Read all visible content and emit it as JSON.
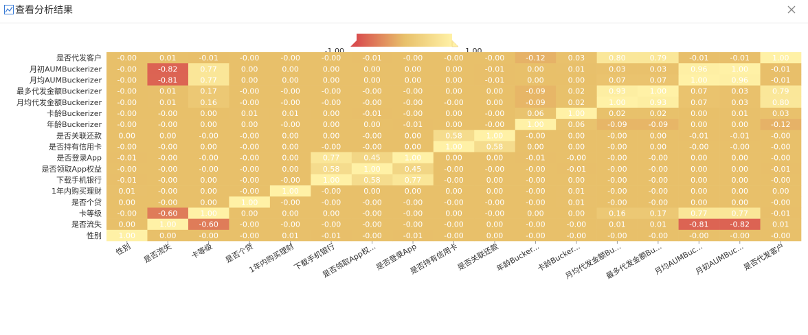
{
  "dialog": {
    "title": "查看分析结果"
  },
  "colors": {
    "low": "#d94e4e",
    "mid": "#e8c06a",
    "high": "#fff1a6",
    "grid": "#e8c06a"
  },
  "chart_data": {
    "type": "heatmap",
    "title": "",
    "visual_map": {
      "min": -1.0,
      "max": 1.0,
      "min_label": "-1.00",
      "max_label": "1.00"
    },
    "x_labels": [
      "性别",
      "是否流失",
      "卡等级",
      "是否个贷",
      "1年内购买理财",
      "下载手机银行",
      "是否领取App权...",
      "是否登录App",
      "是否持有信用卡",
      "是否关联还款",
      "年龄Bucker...",
      "卡龄Bucker...",
      "月均代发金额Bu...",
      "最多代发金额Bu...",
      "月均AUMBuc...",
      "月初AUMBuc...",
      "是否代发客户"
    ],
    "y_labels": [
      "是否代发客户",
      "月初AUMBuckerizer",
      "月均AUMBuckerizer",
      "最多代发金额Buckerizer",
      "月均代发金额Buckerizer",
      "卡龄Buckerizer",
      "年龄Buckerizer",
      "是否关联还款",
      "是否持有信用卡",
      "是否登录App",
      "是否领取App权益",
      "下载手机银行",
      "1年内购买理财",
      "是否个贷",
      "卡等级",
      "是否流失",
      "性别"
    ],
    "matrix": [
      [
        "-0.00",
        "0.01",
        "-0.01",
        "-0.00",
        "-0.00",
        "-0.00",
        "-0.01",
        "-0.00",
        "-0.00",
        "-0.00",
        "-0.12",
        "0.03",
        "0.80",
        "0.79",
        "-0.01",
        "-0.01",
        "1.00"
      ],
      [
        "-0.00",
        "-0.82",
        "0.77",
        "0.00",
        "0.00",
        "0.00",
        "0.00",
        "0.00",
        "0.00",
        "-0.01",
        "0.00",
        "0.01",
        "0.03",
        "0.03",
        "0.96",
        "1.00",
        "-0.01"
      ],
      [
        "-0.00",
        "-0.81",
        "0.77",
        "0.00",
        "0.00",
        "0.00",
        "0.00",
        "0.00",
        "0.00",
        "-0.01",
        "0.00",
        "0.00",
        "0.07",
        "0.07",
        "1.00",
        "0.96",
        "-0.01"
      ],
      [
        "-0.00",
        "0.01",
        "0.17",
        "-0.00",
        "-0.00",
        "-0.00",
        "-0.00",
        "-0.00",
        "0.00",
        "0.00",
        "-0.09",
        "0.02",
        "0.93",
        "1.00",
        "0.07",
        "0.03",
        "0.79"
      ],
      [
        "-0.00",
        "0.01",
        "0.16",
        "-0.00",
        "-0.00",
        "-0.00",
        "-0.00",
        "-0.00",
        "-0.00",
        "0.00",
        "-0.09",
        "0.02",
        "1.00",
        "0.93",
        "0.07",
        "0.03",
        "0.80"
      ],
      [
        "-0.00",
        "-0.00",
        "0.00",
        "0.01",
        "0.01",
        "0.00",
        "-0.01",
        "-0.00",
        "0.00",
        "-0.00",
        "0.06",
        "1.00",
        "0.02",
        "0.02",
        "0.00",
        "0.01",
        "0.03"
      ],
      [
        "-0.00",
        "-0.00",
        "0.00",
        "0.00",
        "-0.00",
        "0.00",
        "0.00",
        "-0.01",
        "0.00",
        "-0.00",
        "1.00",
        "0.06",
        "-0.09",
        "-0.09",
        "0.00",
        "0.00",
        "-0.12"
      ],
      [
        "0.00",
        "0.00",
        "-0.00",
        "-0.00",
        "0.00",
        "0.00",
        "-0.00",
        "0.00",
        "0.58",
        "1.00",
        "-0.00",
        "0.00",
        "-0.00",
        "0.00",
        "-0.01",
        "-0.01",
        "-0.00"
      ],
      [
        "-0.00",
        "-0.00",
        "0.00",
        "-0.00",
        "0.00",
        "-0.00",
        "-0.00",
        "0.00",
        "1.00",
        "0.58",
        "0.00",
        "0.00",
        "-0.00",
        "0.00",
        "-0.00",
        "-0.00",
        "-0.00"
      ],
      [
        "-0.01",
        "-0.00",
        "-0.00",
        "-0.00",
        "0.00",
        "0.77",
        "0.45",
        "1.00",
        "0.00",
        "0.00",
        "-0.01",
        "-0.00",
        "-0.00",
        "-0.00",
        "0.00",
        "0.00",
        "-0.00"
      ],
      [
        "-0.00",
        "-0.00",
        "-0.00",
        "-0.00",
        "0.00",
        "0.58",
        "1.00",
        "0.45",
        "-0.00",
        "-0.00",
        "-0.00",
        "-0.01",
        "-0.00",
        "-0.00",
        "0.00",
        "0.00",
        "-0.01"
      ],
      [
        "-0.01",
        "-0.00",
        "0.00",
        "-0.00",
        "-0.00",
        "1.00",
        "0.58",
        "0.77",
        "-0.00",
        "0.00",
        "-0.00",
        "0.00",
        "-0.00",
        "-0.00",
        "0.00",
        "0.00",
        "-0.00"
      ],
      [
        "0.01",
        "-0.00",
        "0.00",
        "-0.00",
        "1.00",
        "-0.00",
        "0.00",
        "0.00",
        "0.00",
        "0.00",
        "-0.00",
        "0.01",
        "-0.00",
        "-0.00",
        "0.00",
        "0.00",
        "0.00"
      ],
      [
        "0.00",
        "-0.00",
        "0.00",
        "1.00",
        "-0.00",
        "-0.00",
        "-0.00",
        "-0.00",
        "-0.00",
        "-0.00",
        "-0.00",
        "0.01",
        "-0.00",
        "-0.00",
        "0.00",
        "0.00",
        "-0.00"
      ],
      [
        "-0.00",
        "-0.60",
        "1.00",
        "0.00",
        "0.00",
        "0.00",
        "-0.00",
        "-0.00",
        "0.00",
        "-0.00",
        "0.00",
        "0.00",
        "0.16",
        "0.17",
        "0.77",
        "0.77",
        "-0.01"
      ],
      [
        "0.00",
        "1.00",
        "-0.60",
        "-0.00",
        "-0.00",
        "-0.00",
        "-0.00",
        "-0.00",
        "-0.00",
        "0.00",
        "-0.00",
        "-0.00",
        "0.01",
        "0.01",
        "-0.81",
        "-0.82",
        "0.01"
      ],
      [
        "1.00",
        "0.00",
        "-0.00",
        "-0.00",
        "0.01",
        "-0.01",
        "-0.00",
        "-0.01",
        "-0.00",
        "0.00",
        "-0.00",
        "-0.00",
        "-0.00",
        "-0.00",
        "-0.00",
        "-0.00",
        "-0.00"
      ]
    ]
  }
}
